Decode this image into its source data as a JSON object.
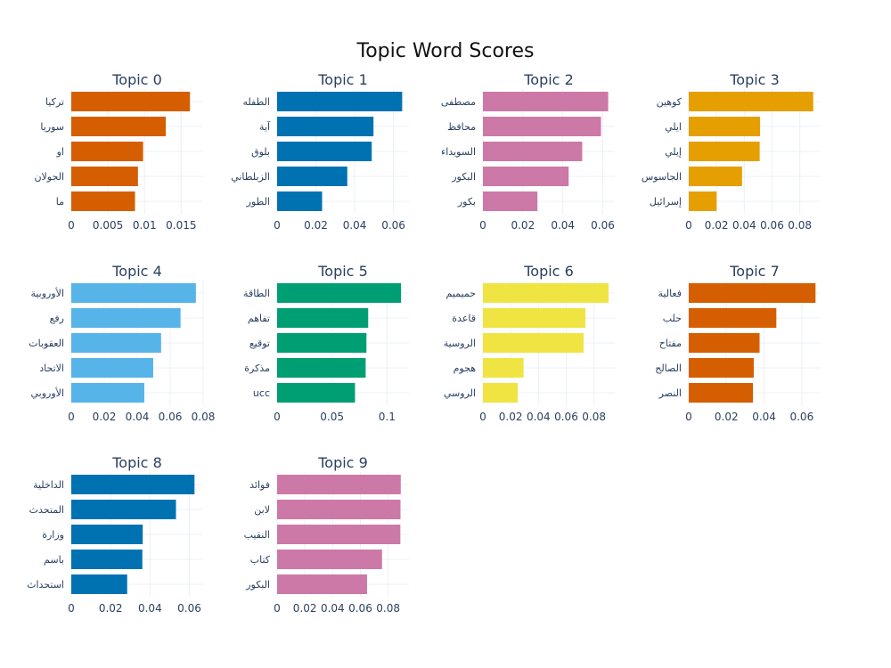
{
  "title": "Topic Word Scores",
  "chart_data": [
    {
      "type": "bar",
      "orientation": "horizontal",
      "title": "Topic 0",
      "color": "#D55E00",
      "categories": [
        "تركيا",
        "سوريا",
        "او",
        "الجولان",
        "ما"
      ],
      "values": [
        0.0162,
        0.0129,
        0.0098,
        0.0091,
        0.0087
      ],
      "xlim": [
        0,
        0.018
      ],
      "xticks": [
        0,
        0.005,
        0.01,
        0.015
      ],
      "xtick_labels": [
        "0",
        "0.005",
        "0.01",
        "0.015"
      ]
    },
    {
      "type": "bar",
      "orientation": "horizontal",
      "title": "Topic 1",
      "color": "#0072B2",
      "categories": [
        "الطفله",
        "آية",
        "بلوق",
        "الزبلطاني",
        "الطور"
      ],
      "values": [
        0.0645,
        0.0497,
        0.0488,
        0.0362,
        0.0232
      ],
      "xlim": [
        0,
        0.068
      ],
      "xticks": [
        0,
        0.02,
        0.04,
        0.06
      ],
      "xtick_labels": [
        "0",
        "0.02",
        "0.04",
        "0.06"
      ]
    },
    {
      "type": "bar",
      "orientation": "horizontal",
      "title": "Topic 2",
      "color": "#CC79A7",
      "categories": [
        "مصطفى",
        "محافظ",
        "السويداء",
        "البكور",
        "بكور"
      ],
      "values": [
        0.0627,
        0.0591,
        0.0497,
        0.0429,
        0.0273
      ],
      "xlim": [
        0,
        0.066
      ],
      "xticks": [
        0,
        0.02,
        0.04,
        0.06
      ],
      "xtick_labels": [
        "0",
        "0.02",
        "0.04",
        "0.06"
      ]
    },
    {
      "type": "bar",
      "orientation": "horizontal",
      "title": "Topic 3",
      "color": "#E69F00",
      "categories": [
        "كوهين",
        "ايلي",
        "إيلي",
        "الجاسوس",
        "إسرائيل"
      ],
      "values": [
        0.0897,
        0.0514,
        0.0511,
        0.0384,
        0.0201
      ],
      "xlim": [
        0,
        0.095
      ],
      "xticks": [
        0,
        0.02,
        0.04,
        0.06,
        0.08
      ],
      "xtick_labels": [
        "0",
        "0.02",
        "0.04",
        "0.06",
        "0.08"
      ]
    },
    {
      "type": "bar",
      "orientation": "horizontal",
      "title": "Topic 4",
      "color": "#56B4E9",
      "categories": [
        "الأوروبية",
        "رفع",
        "العقوبات",
        "الاتحاد",
        "الأوروبي"
      ],
      "values": [
        0.0756,
        0.0663,
        0.0545,
        0.0497,
        0.0443
      ],
      "xlim": [
        0,
        0.08
      ],
      "xticks": [
        0,
        0.02,
        0.04,
        0.06,
        0.08
      ],
      "xtick_labels": [
        "0",
        "0.02",
        "0.04",
        "0.06",
        "0.08"
      ]
    },
    {
      "type": "bar",
      "orientation": "horizontal",
      "title": "Topic 5",
      "color": "#009E73",
      "categories": [
        "الطاقة",
        "تفاهم",
        "توقيع",
        "مذكرة",
        "ucc"
      ],
      "values": [
        0.1128,
        0.0829,
        0.0813,
        0.0806,
        0.0709
      ],
      "xlim": [
        0,
        0.12
      ],
      "xticks": [
        0,
        0.05,
        0.1
      ],
      "xtick_labels": [
        "0",
        "0.05",
        "0.1"
      ]
    },
    {
      "type": "bar",
      "orientation": "horizontal",
      "title": "Topic 6",
      "color": "#F0E442",
      "categories": [
        "حميميم",
        "قاعدة",
        "الروسية",
        "هجوم",
        "الروسي"
      ],
      "values": [
        0.0905,
        0.0738,
        0.0725,
        0.0293,
        0.0251
      ],
      "xlim": [
        0,
        0.095
      ],
      "xticks": [
        0,
        0.02,
        0.04,
        0.06,
        0.08
      ],
      "xtick_labels": [
        "0",
        "0.02",
        "0.04",
        "0.06",
        "0.08"
      ]
    },
    {
      "type": "bar",
      "orientation": "horizontal",
      "title": "Topic 7",
      "color": "#D55E00",
      "categories": [
        "فعالية",
        "حلب",
        "مفتاح",
        "الصالح",
        "النصر"
      ],
      "values": [
        0.0673,
        0.0465,
        0.0376,
        0.0345,
        0.0341
      ],
      "xlim": [
        0,
        0.07
      ],
      "xticks": [
        0,
        0.02,
        0.04,
        0.06
      ],
      "xtick_labels": [
        "0",
        "0.02",
        "0.04",
        "0.06"
      ]
    },
    {
      "type": "bar",
      "orientation": "horizontal",
      "title": "Topic 8",
      "color": "#0072B2",
      "categories": [
        "الداخلية",
        "المتحدث",
        "وزارة",
        "باسم",
        "استحداث"
      ],
      "values": [
        0.0626,
        0.0532,
        0.0363,
        0.0361,
        0.0284
      ],
      "xlim": [
        0,
        0.067
      ],
      "xticks": [
        0,
        0.02,
        0.04,
        0.06
      ],
      "xtick_labels": [
        "0",
        "0.02",
        "0.04",
        "0.06"
      ]
    },
    {
      "type": "bar",
      "orientation": "horizontal",
      "title": "Topic 9",
      "color": "#CC79A7",
      "categories": [
        "فوائد",
        "لابن",
        "النقيب",
        "كتاب",
        "البكور"
      ],
      "values": [
        0.0891,
        0.0889,
        0.0888,
        0.0756,
        0.0648
      ],
      "xlim": [
        0,
        0.095
      ],
      "xticks": [
        0,
        0.02,
        0.04,
        0.06,
        0.08
      ],
      "xtick_labels": [
        "0",
        "0.02",
        "0.04",
        "0.06",
        "0.08"
      ]
    }
  ]
}
